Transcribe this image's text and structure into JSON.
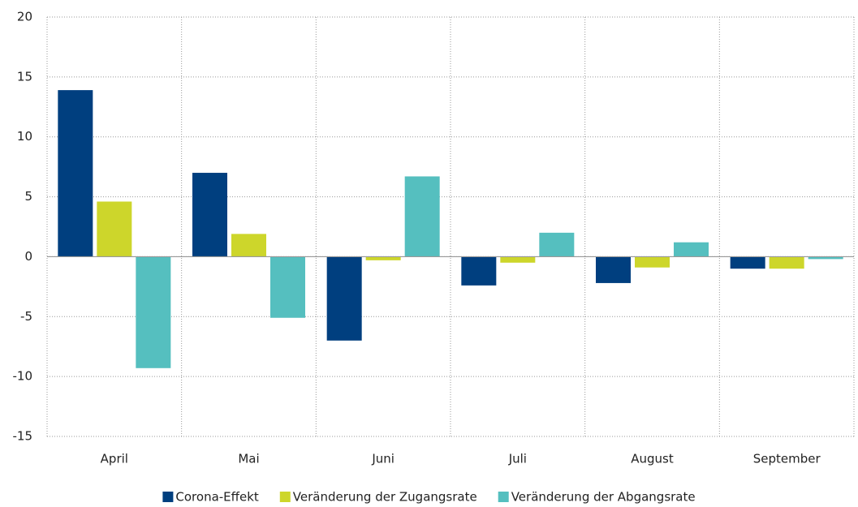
{
  "chart_data": {
    "type": "bar",
    "categories": [
      "April",
      "Mai",
      "Juni",
      "Juli",
      "August",
      "September"
    ],
    "series": [
      {
        "name": "Corona-Effekt",
        "color": "#003f7f",
        "values": [
          13.9,
          7.0,
          -7.0,
          -2.4,
          -2.2,
          -1.0
        ]
      },
      {
        "name": "Veränderung der Zugangsrate",
        "color": "#cdd62b",
        "values": [
          4.6,
          1.9,
          -0.3,
          -0.5,
          -0.9,
          -1.0
        ]
      },
      {
        "name": "Veränderung der Abgangsrate",
        "color": "#55bfbf",
        "values": [
          -9.3,
          -5.1,
          6.7,
          2.0,
          1.2,
          -0.2
        ]
      }
    ],
    "ylim": [
      -15,
      20
    ],
    "yticks": [
      -15,
      -10,
      -5,
      0,
      5,
      10,
      15,
      20
    ],
    "grid": true,
    "legend": "bottom"
  }
}
